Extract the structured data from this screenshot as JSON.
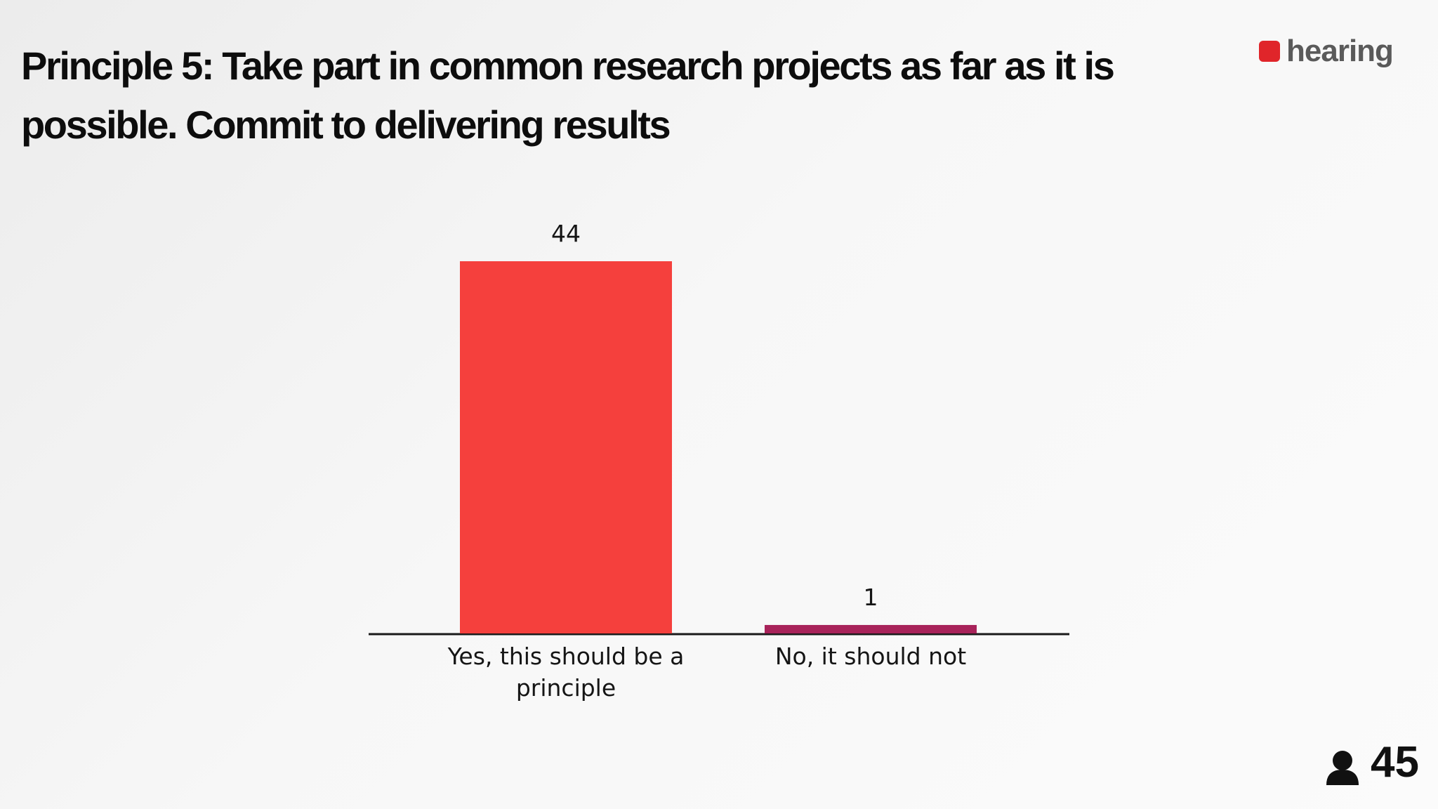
{
  "chart_data": {
    "type": "bar",
    "title": "Principle 5: Take part in common research projects as far as it is possible. Commit to delivering results",
    "categories": [
      "Yes, this should be a principle",
      "No, it should not"
    ],
    "values": [
      44,
      1
    ],
    "colors": [
      "#f5403d",
      "#a8235a"
    ]
  },
  "logo": "hearing",
  "participant_count": 45
}
